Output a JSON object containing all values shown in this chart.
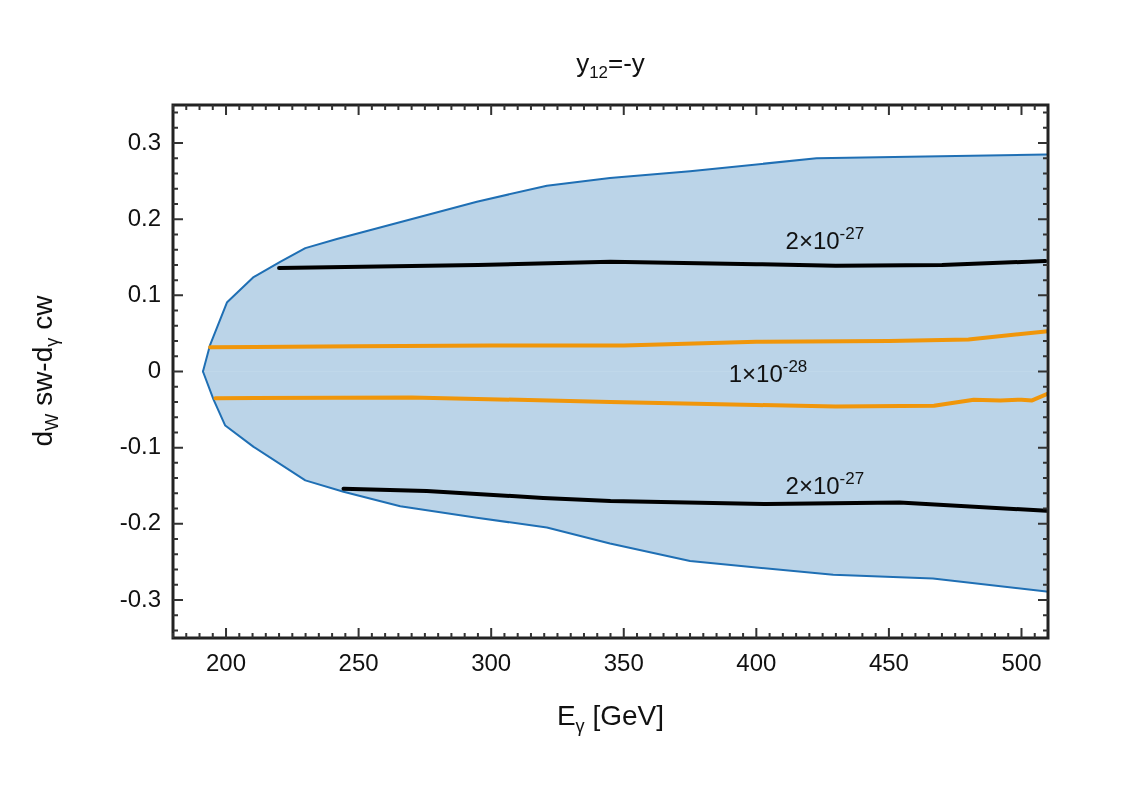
{
  "chart_data": {
    "type": "line",
    "title": "y$_{12}$=-y",
    "xlabel": "E$_{γ}$ [GeV]",
    "ylabel": "d$_{W}$ sw-d$_{γ}$ cw",
    "xlim": [
      180,
      510
    ],
    "ylim": [
      -0.35,
      0.35
    ],
    "xticks": [
      {
        "value": 180,
        "label": null
      },
      {
        "value": 185,
        "label": null
      },
      {
        "value": 190,
        "label": null
      },
      {
        "value": 195,
        "label": null
      },
      200,
      {
        "value": 205,
        "label": null
      },
      {
        "value": 210,
        "label": null
      },
      {
        "value": 215,
        "label": null
      },
      {
        "value": 220,
        "label": null
      },
      {
        "value": 225,
        "label": null
      },
      {
        "value": 230,
        "label": null
      },
      {
        "value": 235,
        "label": null
      },
      {
        "value": 240,
        "label": null
      },
      {
        "value": 245,
        "label": null
      },
      250,
      {
        "value": 255,
        "label": null
      },
      {
        "value": 260,
        "label": null
      },
      {
        "value": 265,
        "label": null
      },
      {
        "value": 270,
        "label": null
      },
      {
        "value": 275,
        "label": null
      },
      {
        "value": 280,
        "label": null
      },
      {
        "value": 285,
        "label": null
      },
      {
        "value": 290,
        "label": null
      },
      {
        "value": 295,
        "label": null
      },
      300,
      {
        "value": 305,
        "label": null
      },
      {
        "value": 310,
        "label": null
      },
      {
        "value": 315,
        "label": null
      },
      {
        "value": 320,
        "label": null
      },
      {
        "value": 325,
        "label": null
      },
      {
        "value": 330,
        "label": null
      },
      {
        "value": 335,
        "label": null
      },
      {
        "value": 340,
        "label": null
      },
      {
        "value": 345,
        "label": null
      },
      350,
      {
        "value": 355,
        "label": null
      },
      {
        "value": 360,
        "label": null
      },
      {
        "value": 365,
        "label": null
      },
      {
        "value": 370,
        "label": null
      },
      {
        "value": 375,
        "label": null
      },
      {
        "value": 380,
        "label": null
      },
      {
        "value": 385,
        "label": null
      },
      {
        "value": 390,
        "label": null
      },
      {
        "value": 395,
        "label": null
      },
      400,
      {
        "value": 405,
        "label": null
      },
      {
        "value": 410,
        "label": null
      },
      {
        "value": 415,
        "label": null
      },
      {
        "value": 420,
        "label": null
      },
      {
        "value": 425,
        "label": null
      },
      {
        "value": 430,
        "label": null
      },
      {
        "value": 435,
        "label": null
      },
      {
        "value": 440,
        "label": null
      },
      {
        "value": 445,
        "label": null
      },
      450,
      {
        "value": 455,
        "label": null
      },
      {
        "value": 460,
        "label": null
      },
      {
        "value": 465,
        "label": null
      },
      {
        "value": 470,
        "label": null
      },
      {
        "value": 475,
        "label": null
      },
      {
        "value": 480,
        "label": null
      },
      {
        "value": 485,
        "label": null
      },
      {
        "value": 490,
        "label": null
      },
      {
        "value": 495,
        "label": null
      },
      500,
      {
        "value": 505,
        "label": null
      }
    ],
    "yticks": [
      {
        "value": -0.34,
        "label": null
      },
      {
        "value": -0.32,
        "label": null
      },
      -0.3,
      {
        "value": -0.28,
        "label": null
      },
      {
        "value": -0.26,
        "label": null
      },
      {
        "value": -0.24,
        "label": null
      },
      {
        "value": -0.22,
        "label": null
      },
      -0.2,
      {
        "value": -0.18,
        "label": null
      },
      {
        "value": -0.16,
        "label": null
      },
      {
        "value": -0.14,
        "label": null
      },
      {
        "value": -0.12,
        "label": null
      },
      -0.1,
      {
        "value": -0.08,
        "label": null
      },
      {
        "value": -0.06,
        "label": null
      },
      {
        "value": -0.04,
        "label": null
      },
      {
        "value": -0.02,
        "label": null
      },
      0,
      {
        "value": 0.02,
        "label": null
      },
      {
        "value": 0.04,
        "label": null
      },
      {
        "value": 0.06,
        "label": null
      },
      {
        "value": 0.08,
        "label": null
      },
      0.1,
      {
        "value": 0.12,
        "label": null
      },
      {
        "value": 0.14,
        "label": null
      },
      {
        "value": 0.16,
        "label": null
      },
      {
        "value": 0.18,
        "label": null
      },
      0.2,
      {
        "value": 0.22,
        "label": null
      },
      {
        "value": 0.24,
        "label": null
      },
      {
        "value": 0.26,
        "label": null
      },
      {
        "value": 0.28,
        "label": null
      },
      0.3,
      {
        "value": 0.32,
        "label": null
      },
      {
        "value": 0.34,
        "label": null
      }
    ],
    "grid": false,
    "legend": false,
    "marker": "none",
    "line_style": "solid",
    "series": [
      {
        "type": "area",
        "color": "#1f6fb4",
        "x": [
          191.3,
          194,
          200.4,
          210.4,
          220.4,
          229.9,
          241.8,
          294.6,
          321,
          344.8,
          375,
          422.7,
          509.4
        ],
        "values": [
          0,
          0.035,
          0.091,
          0.124,
          0.144,
          0.162,
          0.174,
          0.223,
          0.244,
          0.254,
          0.263,
          0.28,
          0.285
        ]
      },
      {
        "type": "area",
        "color": "#1f6fb4",
        "x": [
          191.3,
          195.3,
          199.7,
          210.4,
          229.9,
          244.3,
          265.7,
          294.6,
          321,
          344.8,
          375,
          429,
          466.6,
          509.4
        ],
        "values": [
          0,
          -0.037,
          -0.071,
          -0.099,
          -0.143,
          -0.158,
          -0.177,
          -0.192,
          -0.205,
          -0.226,
          -0.249,
          -0.267,
          -0.272,
          -0.289
        ]
      },
      {
        "type": "line",
        "color": "#000000",
        "x": [
          220,
          295,
          345,
          400,
          430,
          470,
          509
        ],
        "values": [
          0.136,
          0.14,
          0.144,
          0.141,
          0.139,
          0.14,
          0.145
        ]
      },
      {
        "type": "line",
        "color": "#000000",
        "x": [
          244.3,
          275.7,
          319.6,
          345,
          403.9,
          454,
          509.4
        ],
        "values": [
          -0.154,
          -0.157,
          -0.166,
          -0.17,
          -0.174,
          -0.172,
          -0.183
        ]
      },
      {
        "type": "line",
        "color": "#f0960a",
        "x": [
          194,
          250,
          300,
          350,
          400,
          450,
          480,
          510
        ],
        "values": [
          0.032,
          0.033,
          0.034,
          0.034,
          0.039,
          0.04,
          0.042,
          0.053
        ]
      },
      {
        "type": "line",
        "color": "#f0960a",
        "x": [
          196,
          270,
          345,
          400,
          430,
          467,
          482,
          492,
          500,
          504,
          510
        ],
        "values": [
          -0.035,
          -0.034,
          -0.04,
          -0.044,
          -0.046,
          -0.045,
          -0.037,
          -0.038,
          -0.037,
          -0.038,
          -0.029
        ]
      }
    ],
    "annotations": [
      "2×10$^{-27}$",
      "1×10$^{-28}$",
      "2×10$^{-27}$"
    ]
  }
}
